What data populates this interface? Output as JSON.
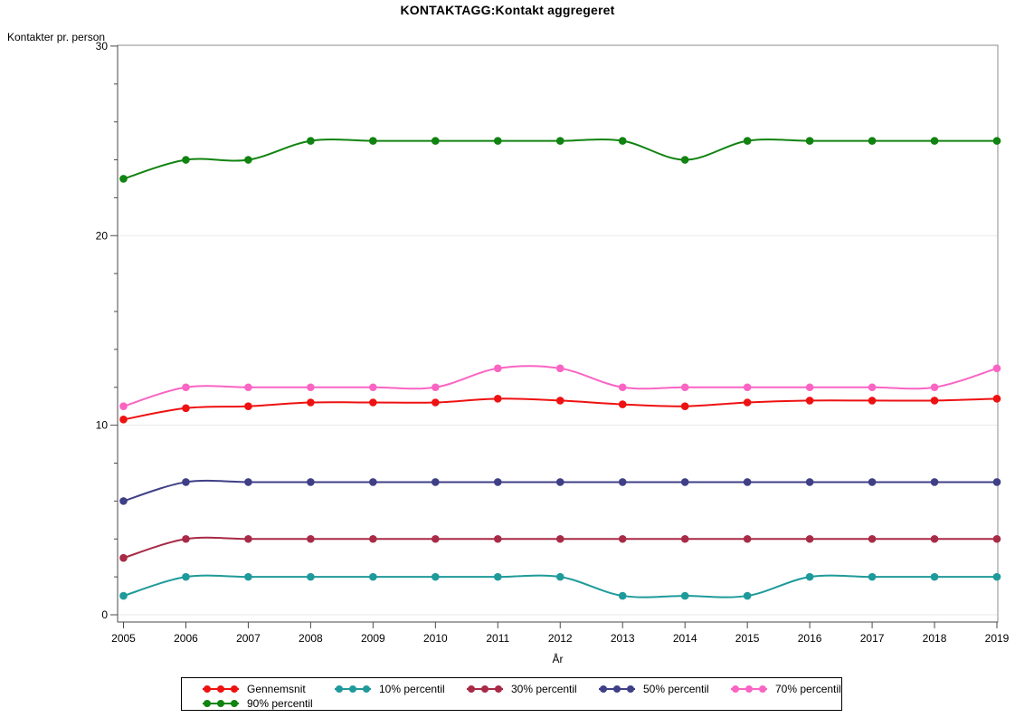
{
  "chart": {
    "title": "KONTAKTAGG:Kontakt aggregeret",
    "y_axis_title": "Kontakter pr. person",
    "x_axis_title": "År"
  },
  "chart_data": {
    "type": "line",
    "title": "KONTAKTAGG:Kontakt aggregeret",
    "xlabel": "År",
    "ylabel": "Kontakter pr. person",
    "x": [
      2005,
      2006,
      2007,
      2008,
      2009,
      2010,
      2011,
      2012,
      2013,
      2014,
      2015,
      2016,
      2017,
      2018,
      2019
    ],
    "ylim": [
      0,
      30
    ],
    "y_major_ticks": [
      0,
      10,
      20,
      30
    ],
    "y_minor_tick_step": 2,
    "grid": "horizontal-major",
    "legend_position": "bottom",
    "marker": "filled-circle",
    "line_interpolation": "smooth",
    "series": [
      {
        "name": "Gennemsnit",
        "color": "#ee1111",
        "values": [
          10.3,
          10.9,
          11.0,
          11.2,
          11.2,
          11.2,
          11.4,
          11.3,
          11.1,
          11.0,
          11.2,
          11.3,
          11.3,
          11.3,
          11.4
        ]
      },
      {
        "name": "10% percentil",
        "color": "#1f9a9a",
        "values": [
          1,
          2,
          2,
          2,
          2,
          2,
          2,
          2,
          1,
          1,
          1,
          2,
          2,
          2,
          2
        ]
      },
      {
        "name": "30% percentil",
        "color": "#a82a46",
        "values": [
          3,
          4,
          4,
          4,
          4,
          4,
          4,
          4,
          4,
          4,
          4,
          4,
          4,
          4,
          4
        ]
      },
      {
        "name": "50% percentil",
        "color": "#3f3f87",
        "values": [
          6,
          7,
          7,
          7,
          7,
          7,
          7,
          7,
          7,
          7,
          7,
          7,
          7,
          7,
          7
        ]
      },
      {
        "name": "70% percentil",
        "color": "#fa64c3",
        "values": [
          11,
          12,
          12,
          12,
          12,
          12,
          13,
          13,
          12,
          12,
          12,
          12,
          12,
          12,
          13
        ]
      },
      {
        "name": "90% percentil",
        "color": "#108310",
        "values": [
          23,
          24,
          24,
          25,
          25,
          25,
          25,
          25,
          25,
          24,
          25,
          25,
          25,
          25,
          25
        ]
      }
    ]
  }
}
